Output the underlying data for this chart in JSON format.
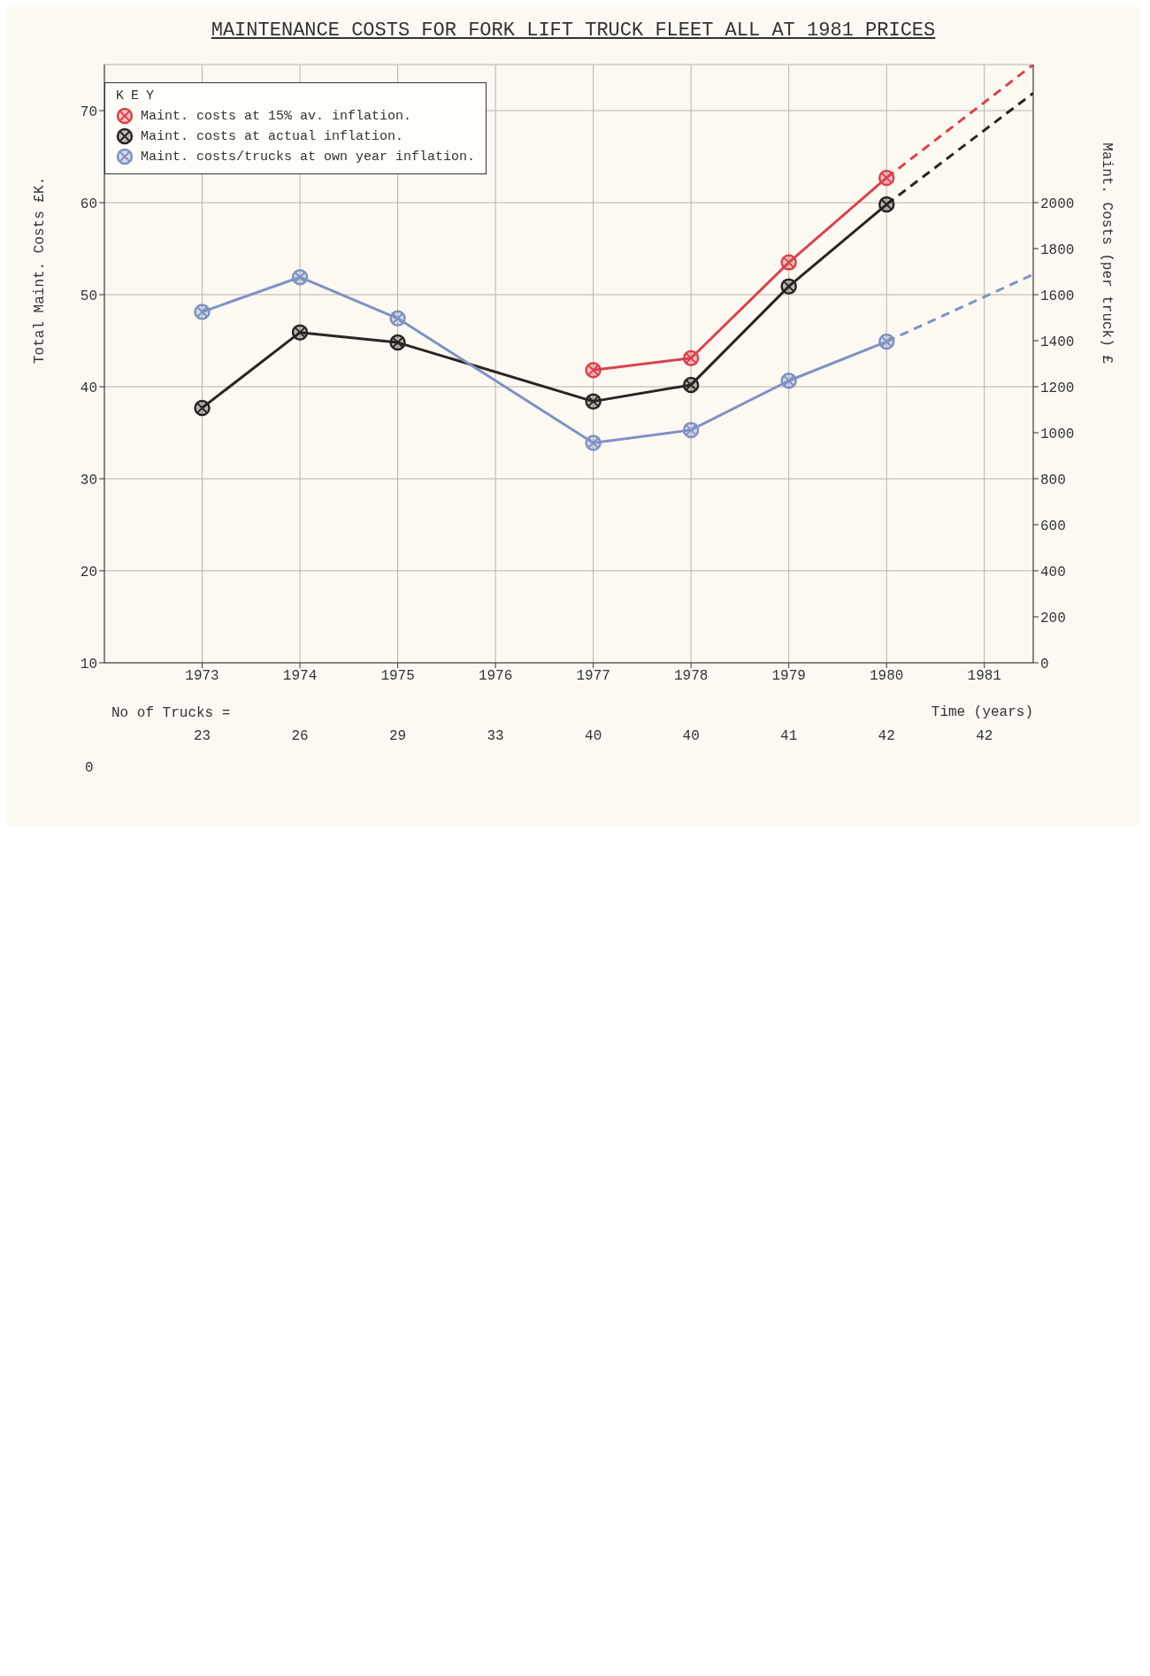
{
  "chart_data": {
    "type": "line",
    "title": "MAINTENANCE COSTS FOR FORK LIFT TRUCK FLEET ALL AT 1981 PRICES",
    "xlabel": "Time (years)",
    "ylabel": "Total Maint. Costs £K.",
    "y2label": "Maint. Costs (per truck) £",
    "legend_title": "KEY",
    "xlim": [
      1972,
      1981.5
    ],
    "xticks": [
      1973,
      1974,
      1975,
      1976,
      1977,
      1978,
      1979,
      1980,
      1981
    ],
    "annotations": [
      "0",
      "No of Trucks =",
      "23",
      "26",
      "29",
      "33",
      "40",
      "40",
      "41",
      "42",
      "42"
    ],
    "ylim": [
      10,
      75
    ],
    "yticks": [
      10,
      20,
      30,
      40,
      50,
      60,
      70
    ],
    "y2lim": [
      0,
      2600
    ],
    "y2ticks": [
      0,
      200,
      400,
      600,
      800,
      1000,
      1200,
      1400,
      1600,
      1800,
      2000
    ],
    "grid": true,
    "legend": "top left",
    "series": [
      {
        "name": "Maint. costs at 15% av. inflation.",
        "color": "#d9434f",
        "marker": "circle",
        "line_style": "solid",
        "x": [
          1977,
          1978,
          1979,
          1980
        ],
        "values": [
          41.8,
          43.1,
          53.5,
          62.7
        ]
      },
      {
        "name": "Maint. costs at actual inflation.",
        "color": "#2b2522",
        "marker": "circle",
        "line_style": "solid",
        "x": [
          1973,
          1974,
          1975,
          1977,
          1978,
          1979,
          1980
        ],
        "values": [
          37.7,
          45.9,
          44.8,
          38.4,
          40.2,
          50.9,
          59.8
        ]
      },
      {
        "name": "Maint. costs/trucks at own year inflation.",
        "color": "#7f92c4",
        "marker": "circle",
        "line_style": "solid",
        "axis": "y2",
        "x": [
          1973,
          1974,
          1975,
          1977,
          1978,
          1979,
          1980
        ],
        "values": [
          1525,
          1676,
          1497,
          956,
          1012,
          1226,
          1396
        ]
      },
      {
        "color": "#d9434f",
        "line_style": "dashed",
        "x": [
          1980,
          1981.5
        ],
        "values": [
          62.7,
          75
        ]
      },
      {
        "color": "#2b2522",
        "line_style": "dashed",
        "x": [
          1980,
          1981.5
        ],
        "values": [
          59.8,
          71.9
        ]
      },
      {
        "color": "#7f92c4",
        "line_style": "dashed",
        "axis": "y2",
        "x": [
          1980,
          1981.5
        ],
        "values": [
          1396,
          1688
        ]
      }
    ]
  }
}
